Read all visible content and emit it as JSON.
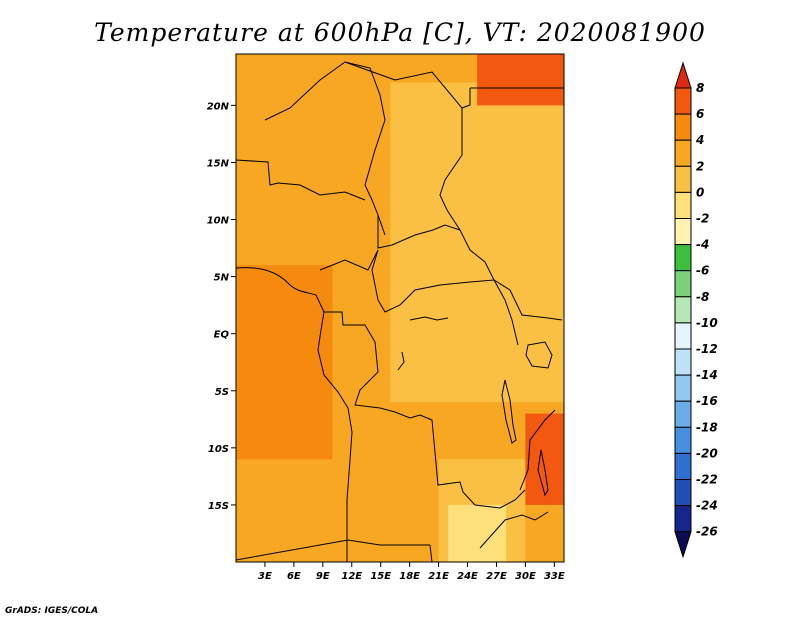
{
  "chart_data": {
    "type": "heatmap",
    "title": "Temperature at 600hPa [C], VT: 2020081900",
    "xlabel": "",
    "ylabel": "",
    "xlim": [
      0,
      34
    ],
    "ylim": [
      -20,
      24.5
    ],
    "x_ticks": [
      {
        "value": 3,
        "label": "3E"
      },
      {
        "value": 6,
        "label": "6E"
      },
      {
        "value": 9,
        "label": "9E"
      },
      {
        "value": 12,
        "label": "12E"
      },
      {
        "value": 15,
        "label": "15E"
      },
      {
        "value": 18,
        "label": "18E"
      },
      {
        "value": 21,
        "label": "21E"
      },
      {
        "value": 24,
        "label": "24E"
      },
      {
        "value": 27,
        "label": "27E"
      },
      {
        "value": 30,
        "label": "30E"
      },
      {
        "value": 33,
        "label": "33E"
      }
    ],
    "y_ticks": [
      {
        "value": 20,
        "label": "20N"
      },
      {
        "value": 15,
        "label": "15N"
      },
      {
        "value": 10,
        "label": "10N"
      },
      {
        "value": 5,
        "label": "5N"
      },
      {
        "value": 0,
        "label": "EQ"
      },
      {
        "value": -5,
        "label": "5S"
      },
      {
        "value": -10,
        "label": "10S"
      },
      {
        "value": -15,
        "label": "15S"
      }
    ],
    "colorbar": {
      "levels": [
        "8",
        "6",
        "4",
        "2",
        "0",
        "-2",
        "-4",
        "-6",
        "-8",
        "-10",
        "-12",
        "-14",
        "-16",
        "-18",
        "-20",
        "-22",
        "-24",
        "-26"
      ],
      "colors": [
        "#e02a10",
        "#f2580f",
        "#f58a0f",
        "#f8a723",
        "#fac043",
        "#fde07a",
        "#fff2b0",
        "#3dbf3d",
        "#7ad27a",
        "#b4e8b4",
        "#e4f6fb",
        "#bfe2f7",
        "#93c9f0",
        "#6aaee8",
        "#4690df",
        "#2f6fd0",
        "#1f4eb6",
        "#16278c",
        "#0c0c55"
      ]
    },
    "fields": [
      {
        "x": [
          0,
          34
        ],
        "y": [
          -20,
          24.5
        ],
        "value": 3
      },
      {
        "x": [
          0,
          10
        ],
        "y": [
          -11,
          6
        ],
        "value": 5
      },
      {
        "x": [
          16,
          34
        ],
        "y": [
          -6,
          22
        ],
        "value": 1
      },
      {
        "x": [
          21,
          30
        ],
        "y": [
          -20,
          -11
        ],
        "value": 0
      },
      {
        "x": [
          22,
          28
        ],
        "y": [
          -20,
          -15
        ],
        "value": -1
      },
      {
        "x": [
          25,
          34
        ],
        "y": [
          20,
          24.5
        ],
        "value": 7
      },
      {
        "x": [
          30,
          34
        ],
        "y": [
          -15,
          -7
        ],
        "value": 6
      }
    ]
  },
  "footer": {
    "credit": "GrADS: IGES/COLA"
  }
}
